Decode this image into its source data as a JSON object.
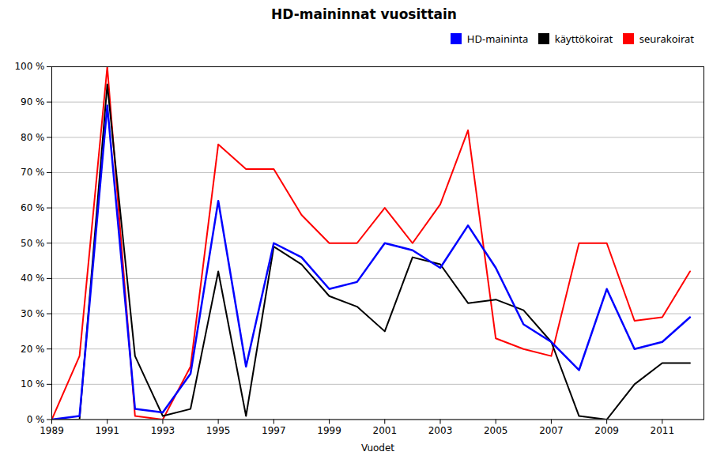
{
  "chart_data": {
    "type": "line",
    "title": "HD-maininnat vuosittain",
    "xlabel": "Vuodet",
    "x": [
      1989,
      1990,
      1991,
      1992,
      1993,
      1994,
      1995,
      1996,
      1997,
      1998,
      1999,
      2000,
      2001,
      2002,
      2003,
      2004,
      2005,
      2006,
      2007,
      2008,
      2009,
      2010,
      2011,
      2012
    ],
    "series": [
      {
        "name": "HD-maininta",
        "color": "#0000ff",
        "values": [
          0,
          1,
          89,
          3,
          2,
          13,
          62,
          15,
          50,
          46,
          37,
          39,
          50,
          48,
          43,
          55,
          43,
          27,
          22,
          14,
          37,
          20,
          22,
          29
        ]
      },
      {
        "name": "käyttökoirat",
        "color": "#000000",
        "values": [
          0,
          0,
          95,
          18,
          1,
          3,
          42,
          1,
          49,
          44,
          35,
          32,
          25,
          46,
          44,
          33,
          34,
          31,
          22,
          1,
          0,
          10,
          16,
          16
        ]
      },
      {
        "name": "seurakoirat",
        "color": "#ff0000",
        "values": [
          0,
          18,
          100,
          1,
          0,
          15,
          78,
          71,
          71,
          58,
          50,
          50,
          60,
          50,
          61,
          82,
          23,
          20,
          18,
          50,
          50,
          28,
          29,
          42
        ]
      }
    ],
    "xlim": [
      1989,
      2012.5
    ],
    "xticks": [
      1989,
      1991,
      1993,
      1995,
      1997,
      1999,
      2001,
      2003,
      2005,
      2007,
      2009,
      2011
    ],
    "ylim": [
      0,
      100
    ],
    "yticks": [
      {
        "value": 0,
        "label": "0 %"
      },
      {
        "value": 10,
        "label": "10 %"
      },
      {
        "value": 20,
        "label": "20 %"
      },
      {
        "value": 30,
        "label": "30 %"
      },
      {
        "value": 40,
        "label": "40 %"
      },
      {
        "value": 50,
        "label": "50 %"
      },
      {
        "value": 60,
        "label": "60 %"
      },
      {
        "value": 70,
        "label": "70 %"
      },
      {
        "value": 80,
        "label": "80 %"
      },
      {
        "value": 90,
        "label": "90 %"
      },
      {
        "value": 100,
        "label": "100 %"
      }
    ],
    "grid": true,
    "legend": "upper right"
  }
}
